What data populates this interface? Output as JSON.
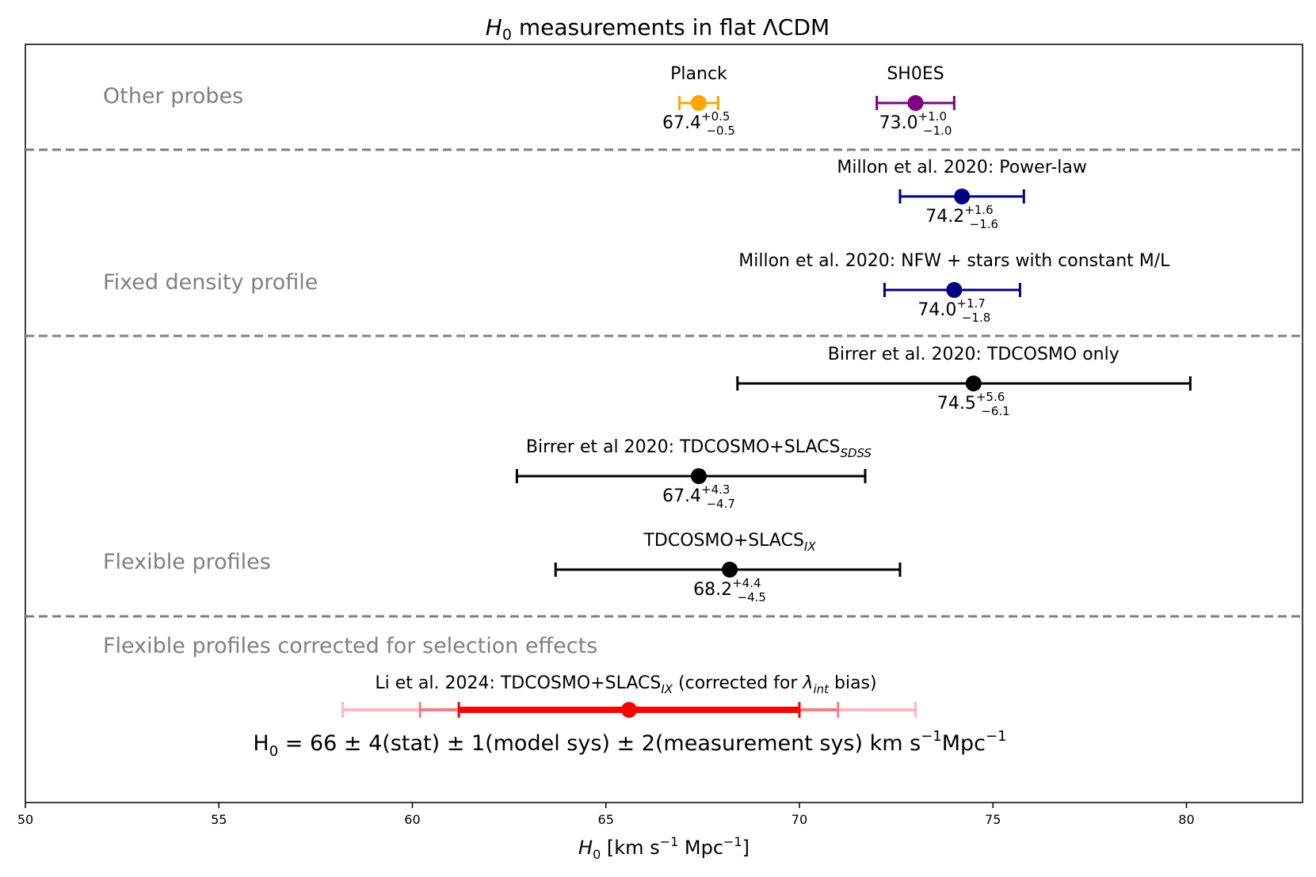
{
  "chart_data": {
    "type": "errorbar",
    "title": {
      "var": "H",
      "sub": "0",
      "rest": " measurements in flat ΛCDM"
    },
    "xlabel": {
      "var": "H",
      "sub": "0",
      "mid": " [km s",
      "sup1": "−1",
      "mid2": " Mpc",
      "sup2": "−1",
      "end": "]"
    },
    "xlim": [
      50,
      83
    ],
    "xticks": [
      50,
      55,
      60,
      65,
      70,
      75,
      80
    ],
    "groups": [
      {
        "label": "Other probes"
      },
      {
        "label": "Fixed density profile"
      },
      {
        "label": "Flexible profiles"
      },
      {
        "label": "Flexible profiles corrected for selection effects"
      }
    ],
    "entries": [
      {
        "name": "Planck",
        "value": 67.4,
        "plus": 0.5,
        "minus": 0.5,
        "value_text": "67.4",
        "plus_text": "+0.5",
        "minus_text": "−0.5",
        "color": "#ffa500"
      },
      {
        "name": "SH0ES",
        "value": 73.0,
        "plus": 1.0,
        "minus": 1.0,
        "value_text": "73.0",
        "plus_text": "+1.0",
        "minus_text": "−1.0",
        "color": "#800080"
      },
      {
        "name": "Millon et al. 2020: Power-law",
        "value": 74.2,
        "plus": 1.6,
        "minus": 1.6,
        "value_text": "74.2",
        "plus_text": "+1.6",
        "minus_text": "−1.6",
        "color": "#000080"
      },
      {
        "name": "Millon et al. 2020: NFW + stars with constant M/L",
        "value": 74.0,
        "plus": 1.7,
        "minus": 1.8,
        "value_text": "74.0",
        "plus_text": "+1.7",
        "minus_text": "−1.8",
        "color": "#000080"
      },
      {
        "name": "Birrer et al. 2020: TDCOSMO only",
        "value": 74.5,
        "plus": 5.6,
        "minus": 6.1,
        "value_text": "74.5",
        "plus_text": "+5.6",
        "minus_text": "−6.1",
        "color": "#000000"
      },
      {
        "name": "Birrer et al 2020: TDCOSMO+SLACS",
        "name_sub": "SDSS",
        "value": 67.4,
        "plus": 4.3,
        "minus": 4.7,
        "value_text": "67.4",
        "plus_text": "+4.3",
        "minus_text": "−4.7",
        "color": "#000000"
      },
      {
        "name": "TDCOSMO+SLACS",
        "name_sub": "IX",
        "value": 68.2,
        "plus": 4.4,
        "minus": 4.5,
        "value_text": "68.2",
        "plus_text": "+4.4",
        "minus_text": "−4.5",
        "color": "#000000"
      }
    ],
    "corrected": {
      "name_pre": "Li et al. 2024: TDCOSMO+SLACS",
      "name_sub": "IX",
      "name_mid": " (corrected for ",
      "name_lambda": "λ",
      "name_lambda_sub": "int",
      "name_end": " bias)",
      "value": 65.6,
      "stat": 4.4,
      "model_sys": 1.0,
      "meas_sys": 2.0,
      "color_stat": "#ff0000",
      "color_model": "#f08080",
      "color_meas": "#ffb6c1",
      "formula": {
        "h": "H",
        "h_sub": "0",
        "mid": " = 66 ± 4(stat) ± 1(model sys) ± 2(measurement sys) km s",
        "sup1": "−1",
        "mpc": "Mpc",
        "sup2": "−1"
      }
    }
  }
}
